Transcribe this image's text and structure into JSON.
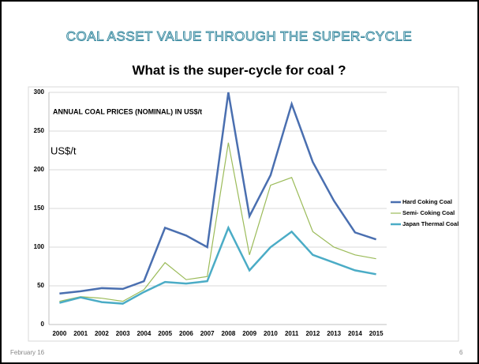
{
  "slide_title": "COAL ASSET VALUE THROUGH THE SUPER-CYCLE",
  "subtitle": "What is the super-cycle for coal ?",
  "footer": {
    "date": "February 16",
    "page": "6"
  },
  "chart_data": {
    "type": "line",
    "title": "ANNUAL COAL PRICES (NOMINAL) IN US$/t",
    "y_label": "US$/t",
    "categories": [
      "2000",
      "2001",
      "2002",
      "2003",
      "2004",
      "2005",
      "2006",
      "2007",
      "2008",
      "2009",
      "2010",
      "2011",
      "2012",
      "2013",
      "2014",
      "2015"
    ],
    "series": [
      {
        "name": "Hard Coking Coal",
        "color": "#4a6fb0",
        "values": [
          40,
          43,
          47,
          46,
          56,
          125,
          115,
          100,
          300,
          140,
          193,
          285,
          210,
          160,
          119,
          110
        ]
      },
      {
        "name": "Semi- Coking Coal",
        "color": "#9bbb59",
        "values": [
          30,
          36,
          34,
          30,
          45,
          80,
          58,
          62,
          235,
          90,
          180,
          190,
          120,
          100,
          90,
          85
        ]
      },
      {
        "name": "Japan Thermal Coal",
        "color": "#4bacc6",
        "values": [
          28,
          35,
          29,
          27,
          42,
          55,
          53,
          56,
          125,
          70,
          100,
          120,
          90,
          80,
          70,
          65
        ]
      }
    ],
    "ylim": [
      0,
      300
    ],
    "yticks": [
      0,
      50,
      100,
      150,
      200,
      250,
      300
    ],
    "grid": true,
    "legend": "right"
  }
}
